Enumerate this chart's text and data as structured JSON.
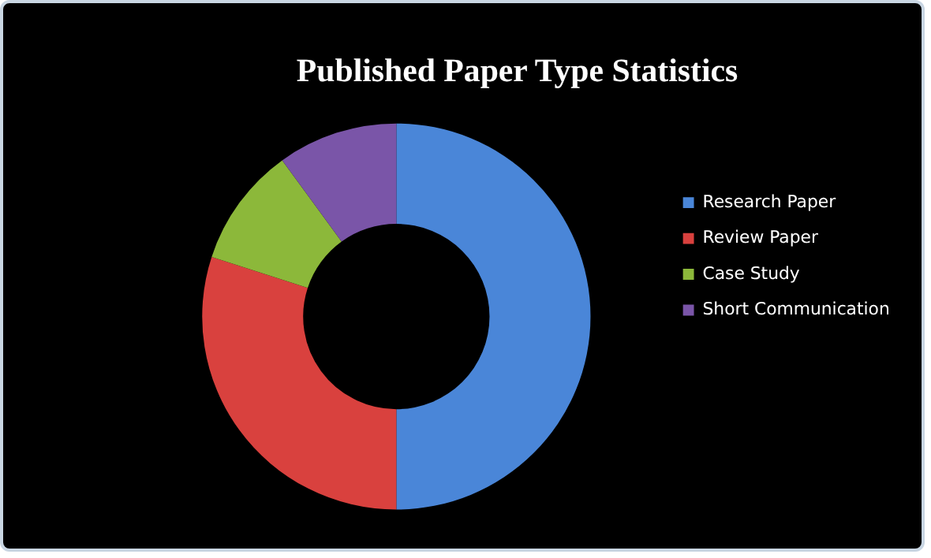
{
  "chart_data": {
    "type": "donut",
    "title": "Published Paper Type Statistics",
    "categories": [
      "Research Paper",
      "Review Paper",
      "Case Study",
      "Short Communication"
    ],
    "values": [
      50,
      30,
      10,
      10
    ],
    "colors": [
      "#4a86d8",
      "#d9413e",
      "#8cb83a",
      "#7a55a8"
    ],
    "legend": "right"
  }
}
